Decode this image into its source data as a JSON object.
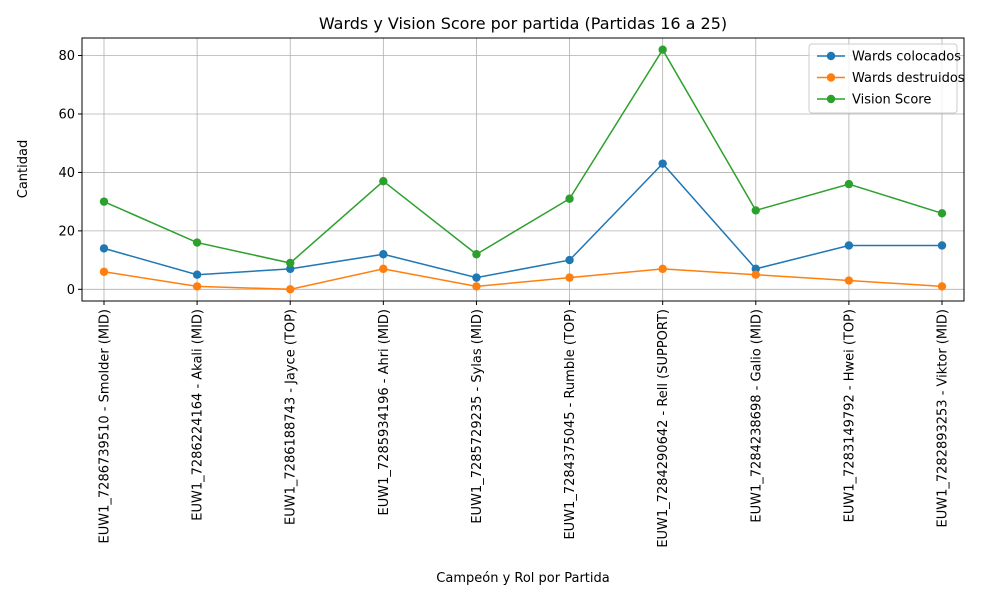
{
  "chart_data": {
    "type": "line",
    "title": "Wards y Vision Score por partida (Partidas 16 a 25)",
    "xlabel": "Campeón y Rol por Partida",
    "ylabel": "Cantidad",
    "ylim": [
      -4,
      86
    ],
    "yticks": [
      0,
      20,
      40,
      60,
      80
    ],
    "grid": true,
    "legend": "top-right",
    "categories": [
      "EUW1_7286739510 - Smolder (MID)",
      "EUW1_7286224164 - Akali (MID)",
      "EUW1_7286188743 - Jayce (TOP)",
      "EUW1_7285934196 - Ahri (MID)",
      "EUW1_7285729235 - Sylas (MID)",
      "EUW1_7284375045 - Rumble (TOP)",
      "EUW1_7284290642 - Rell (SUPPORT)",
      "EUW1_7284238698 - Galio (MID)",
      "EUW1_7283149792 - Hwei (TOP)",
      "EUW1_7282893253 - Viktor (MID)"
    ],
    "series": [
      {
        "name": "Wards colocados",
        "color": "#1f77b4",
        "values": [
          14,
          5,
          7,
          12,
          4,
          10,
          43,
          7,
          15,
          15
        ]
      },
      {
        "name": "Wards destruidos",
        "color": "#ff7f0e",
        "values": [
          6,
          1,
          0,
          7,
          1,
          4,
          7,
          5,
          3,
          1
        ]
      },
      {
        "name": "Vision Score",
        "color": "#2ca02c",
        "values": [
          30,
          16,
          9,
          37,
          12,
          31,
          82,
          27,
          36,
          26
        ]
      }
    ]
  }
}
